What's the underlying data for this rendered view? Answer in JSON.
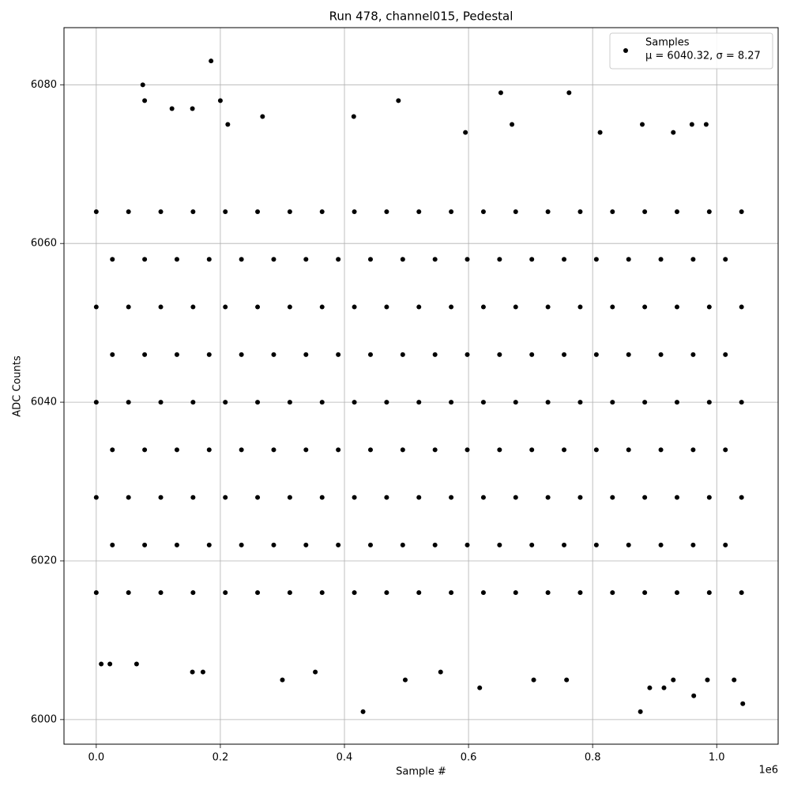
{
  "chart_data": {
    "type": "scatter",
    "title": "Run 478, channel015, Pedestal",
    "xlabel": "Sample #",
    "ylabel": "ADC Counts",
    "x_offset_label": "1e6",
    "xlim": [
      -52000,
      1099000
    ],
    "ylim": [
      5996.9,
      6087.2
    ],
    "xticks": [
      {
        "value": 0,
        "label": "0.0"
      },
      {
        "value": 200000,
        "label": "0.2"
      },
      {
        "value": 400000,
        "label": "0.4"
      },
      {
        "value": 600000,
        "label": "0.6"
      },
      {
        "value": 800000,
        "label": "0.8"
      },
      {
        "value": 1000000,
        "label": "1.0"
      }
    ],
    "yticks": [
      6000,
      6020,
      6040,
      6060,
      6080
    ],
    "grid": true,
    "legend": "upper right",
    "series": [
      {
        "name": "Samples",
        "label": "μ = 6040.32, σ = 8.27",
        "color": "#000000",
        "x": [
          185000,
          75000,
          78000,
          200000,
          487000,
          652000,
          762000,
          415000,
          430000,
          877000,
          1042000,
          963000,
          618000,
          892000,
          915000,
          8000,
          22000,
          65000,
          155000,
          172000,
          300000,
          353000,
          498000,
          555000,
          705000,
          758000,
          930000,
          1028000,
          985000,
          122000,
          155000,
          670000,
          880000,
          960000,
          983000,
          595000,
          812000,
          930000,
          212000,
          268000,
          0,
          52000,
          104000,
          156000,
          208000,
          260000,
          312000,
          364000,
          416000,
          468000,
          520000,
          572000,
          624000,
          676000,
          728000,
          780000,
          832000,
          884000,
          936000,
          988000,
          1040000,
          26000,
          78000,
          130000,
          182000,
          234000,
          286000,
          338000,
          390000,
          442000,
          494000,
          546000,
          598000,
          650000,
          702000,
          754000,
          806000,
          858000,
          910000,
          962000,
          1014000,
          0,
          52000,
          104000,
          156000,
          208000,
          260000,
          312000,
          364000,
          416000,
          468000,
          520000,
          572000,
          624000,
          676000,
          728000,
          780000,
          832000,
          884000,
          936000,
          988000,
          1040000,
          26000,
          78000,
          130000,
          182000,
          234000,
          286000,
          338000,
          390000,
          442000,
          494000,
          546000,
          598000,
          650000,
          702000,
          754000,
          806000,
          858000,
          910000,
          962000,
          1014000,
          0,
          52000,
          104000,
          156000,
          208000,
          260000,
          312000,
          364000,
          416000,
          468000,
          520000,
          572000,
          624000,
          676000,
          728000,
          780000,
          832000,
          884000,
          936000,
          988000,
          1040000,
          26000,
          78000,
          130000,
          182000,
          234000,
          286000,
          338000,
          390000,
          442000,
          494000,
          546000,
          598000,
          650000,
          702000,
          754000,
          806000,
          858000,
          910000,
          962000,
          1014000,
          0,
          52000,
          104000,
          156000,
          208000,
          260000,
          312000,
          364000,
          416000,
          468000,
          520000,
          572000,
          624000,
          676000,
          728000,
          780000,
          832000,
          884000,
          936000,
          988000,
          1040000,
          26000,
          78000,
          130000,
          182000,
          234000,
          286000,
          338000,
          390000,
          442000,
          494000,
          546000,
          598000,
          650000,
          702000,
          754000,
          806000,
          858000,
          910000,
          962000,
          1014000,
          0,
          52000,
          104000,
          156000,
          208000,
          260000,
          312000,
          364000,
          416000,
          468000,
          520000,
          572000,
          624000,
          676000,
          728000,
          780000,
          832000,
          884000,
          936000,
          988000,
          1040000
        ],
        "values": [
          6083,
          6080,
          6078,
          6078,
          6078,
          6079,
          6079,
          6076,
          6001,
          6001,
          6002,
          6003,
          6004,
          6004,
          6004,
          6007,
          6007,
          6007,
          6006,
          6006,
          6005,
          6006,
          6005,
          6006,
          6005,
          6005,
          6005,
          6005,
          6005,
          6077,
          6077,
          6075,
          6075,
          6075,
          6075,
          6074,
          6074,
          6074,
          6075,
          6076,
          6016,
          6016,
          6016,
          6016,
          6016,
          6016,
          6016,
          6016,
          6016,
          6016,
          6016,
          6016,
          6016,
          6016,
          6016,
          6016,
          6016,
          6016,
          6016,
          6016,
          6016,
          6022,
          6022,
          6022,
          6022,
          6022,
          6022,
          6022,
          6022,
          6022,
          6022,
          6022,
          6022,
          6022,
          6022,
          6022,
          6022,
          6022,
          6022,
          6022,
          6022,
          6028,
          6028,
          6028,
          6028,
          6028,
          6028,
          6028,
          6028,
          6028,
          6028,
          6028,
          6028,
          6028,
          6028,
          6028,
          6028,
          6028,
          6028,
          6028,
          6028,
          6028,
          6034,
          6034,
          6034,
          6034,
          6034,
          6034,
          6034,
          6034,
          6034,
          6034,
          6034,
          6034,
          6034,
          6034,
          6034,
          6034,
          6034,
          6034,
          6034,
          6034,
          6040,
          6040,
          6040,
          6040,
          6040,
          6040,
          6040,
          6040,
          6040,
          6040,
          6040,
          6040,
          6040,
          6040,
          6040,
          6040,
          6040,
          6040,
          6040,
          6040,
          6040,
          6046,
          6046,
          6046,
          6046,
          6046,
          6046,
          6046,
          6046,
          6046,
          6046,
          6046,
          6046,
          6046,
          6046,
          6046,
          6046,
          6046,
          6046,
          6046,
          6046,
          6052,
          6052,
          6052,
          6052,
          6052,
          6052,
          6052,
          6052,
          6052,
          6052,
          6052,
          6052,
          6052,
          6052,
          6052,
          6052,
          6052,
          6052,
          6052,
          6052,
          6052,
          6058,
          6058,
          6058,
          6058,
          6058,
          6058,
          6058,
          6058,
          6058,
          6058,
          6058,
          6058,
          6058,
          6058,
          6058,
          6058,
          6058,
          6058,
          6058,
          6058,
          6064,
          6064,
          6064,
          6064,
          6064,
          6064,
          6064,
          6064,
          6064,
          6064,
          6064,
          6064,
          6064,
          6064,
          6064,
          6064,
          6064,
          6064,
          6064,
          6064,
          6064
        ]
      }
    ]
  }
}
